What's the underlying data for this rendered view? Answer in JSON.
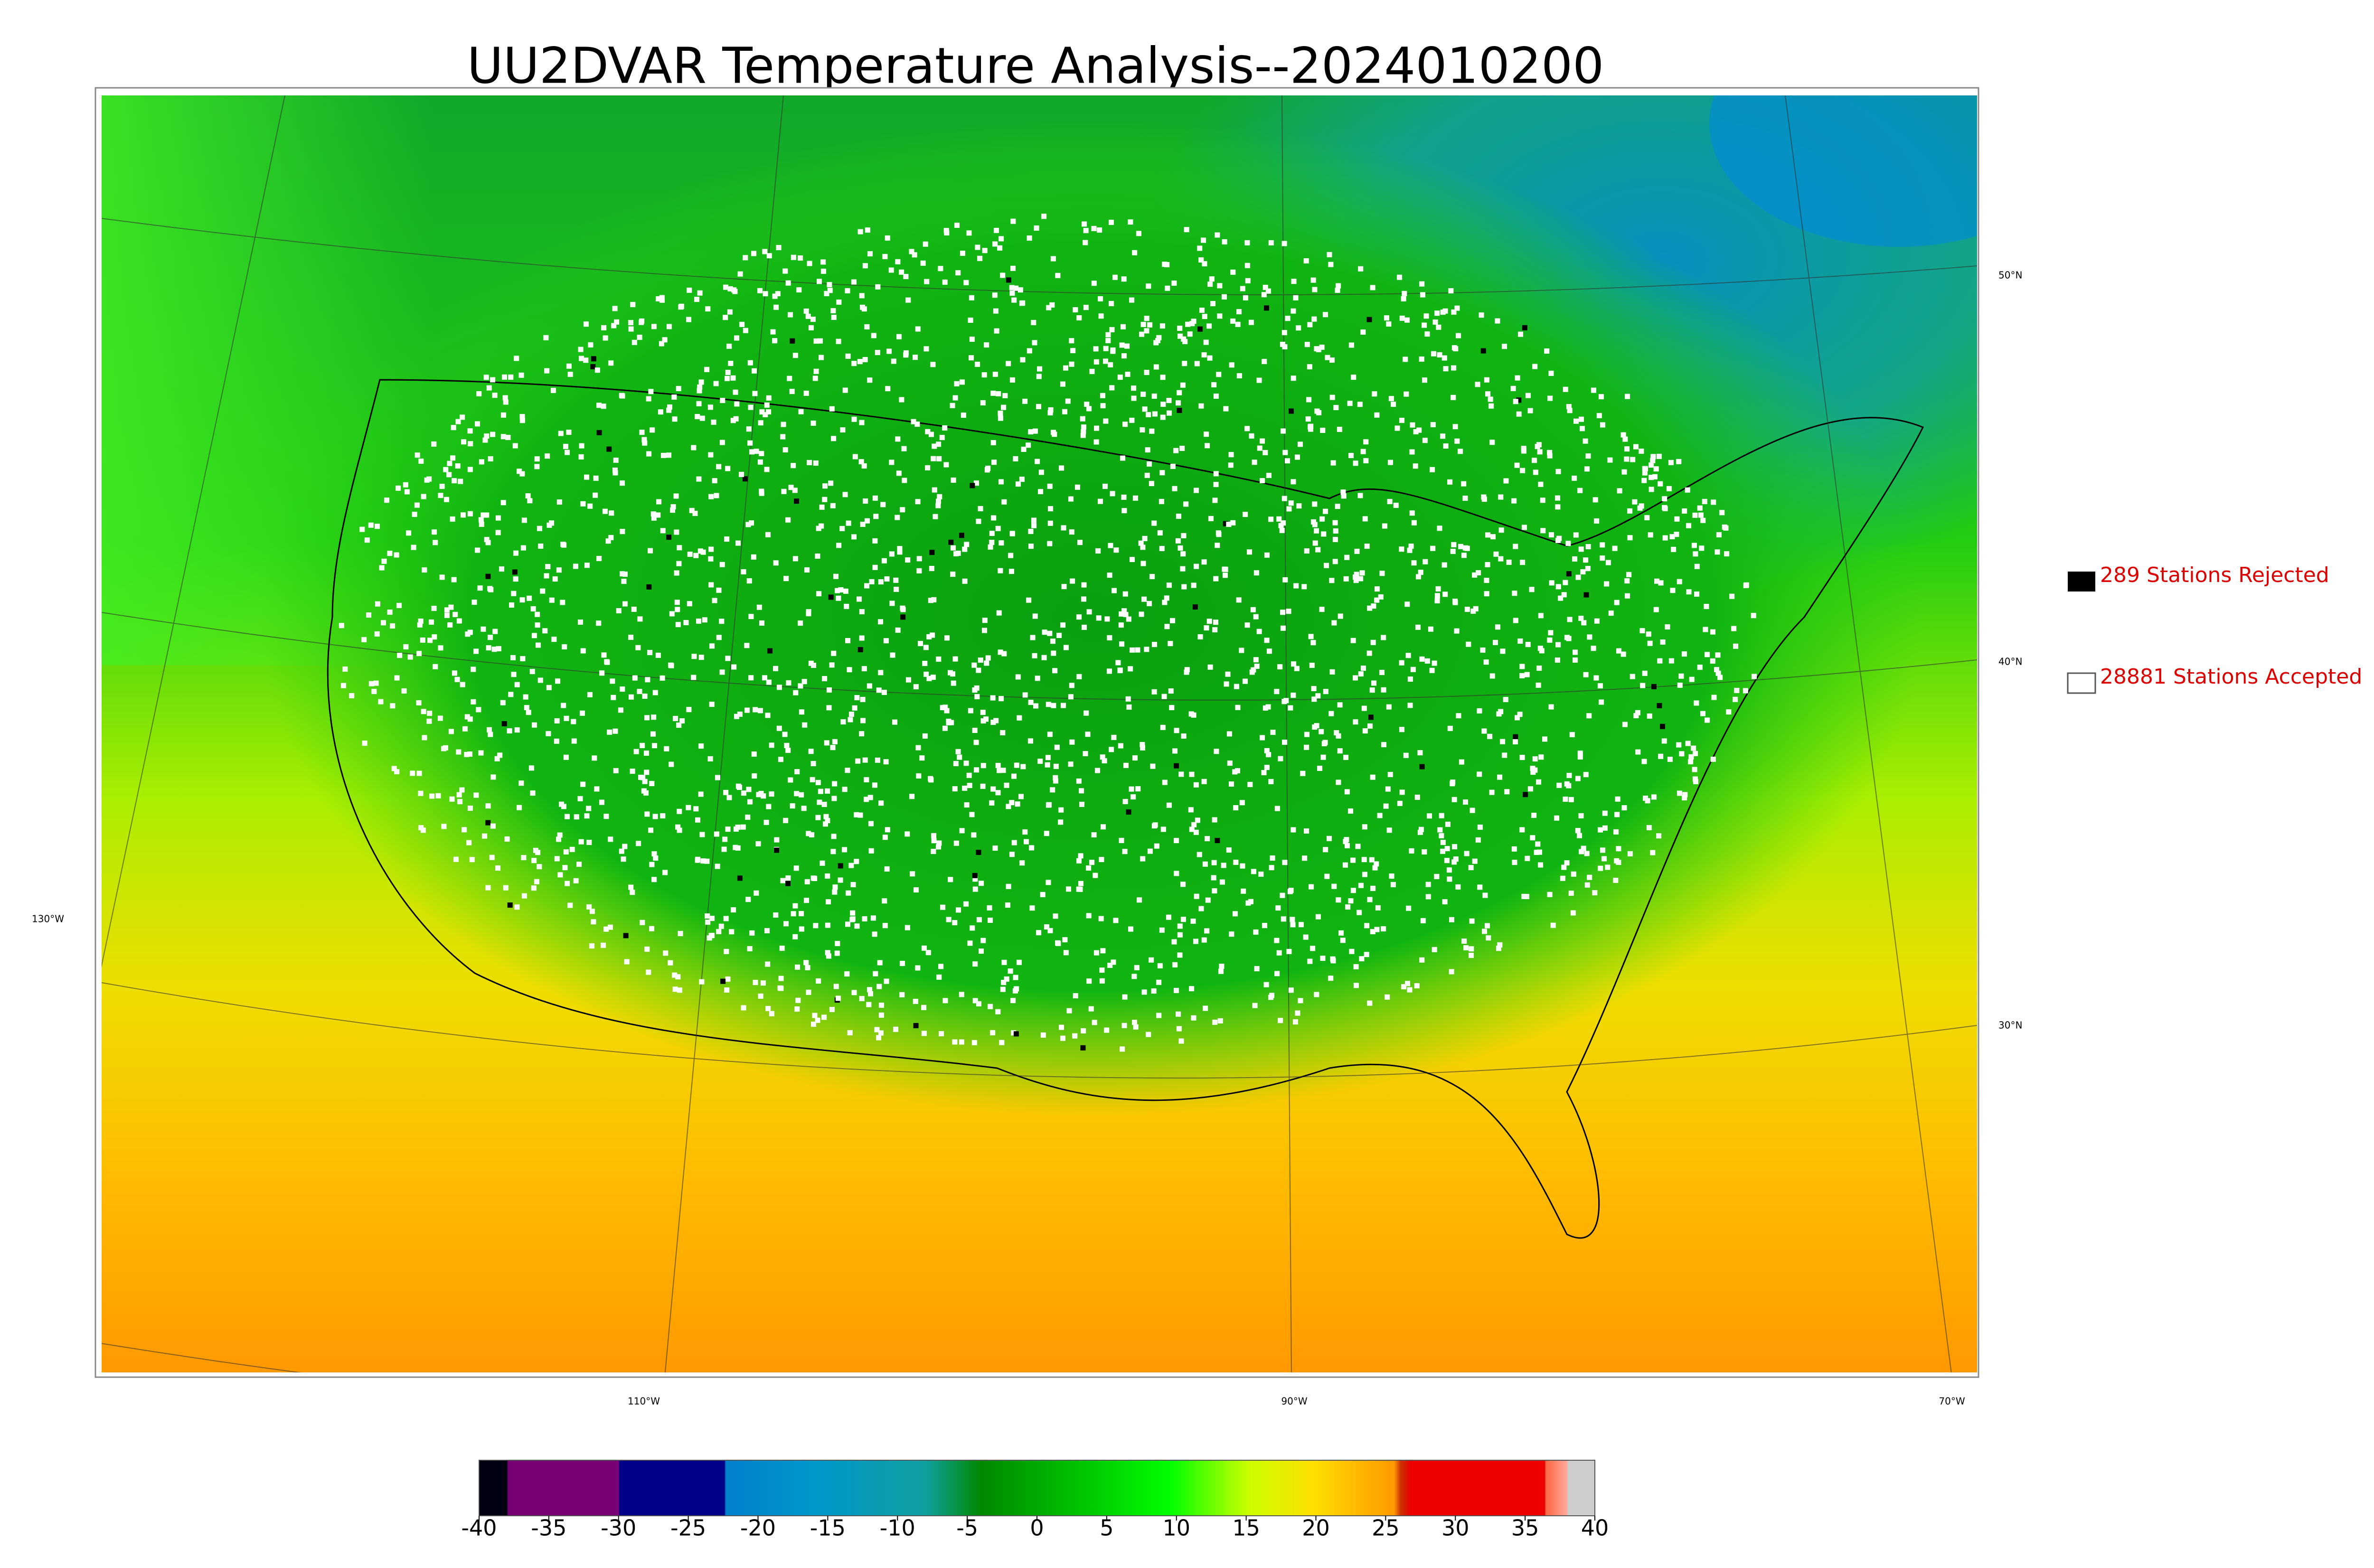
{
  "title": "UU2DVAR Temperature Analysis--2024010200",
  "map": {
    "lat_labels": [
      "50°N",
      "40°N",
      "30°N"
    ],
    "lon_labels": [
      "130°W",
      "110°W",
      "90°W",
      "70°W"
    ]
  },
  "legend": {
    "rejected": "289 Stations Rejected",
    "accepted": "28881 Stations Accepted"
  },
  "colorbar": {
    "ticks": [
      -40,
      -35,
      -30,
      -25,
      -20,
      -15,
      -10,
      -5,
      0,
      5,
      10,
      15,
      20,
      25,
      30,
      35,
      40
    ]
  }
}
